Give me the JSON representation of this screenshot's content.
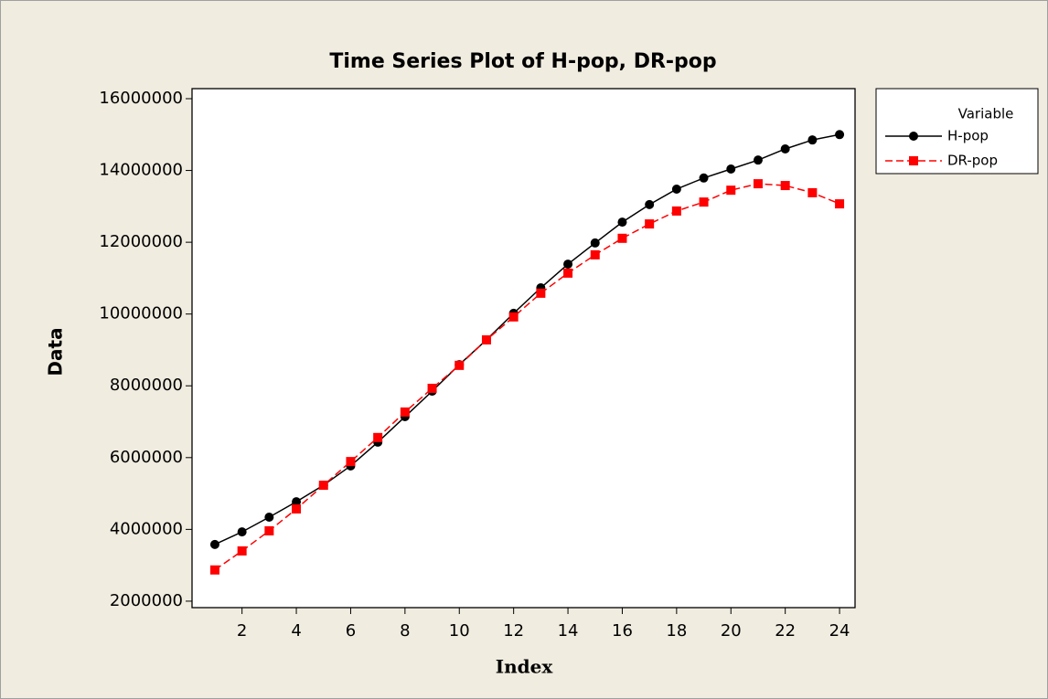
{
  "chart_data": {
    "type": "line",
    "title": "Time Series Plot of H-pop, DR-pop",
    "x_label": "Index",
    "y_label": "Data",
    "legend_title": "Variable",
    "legend_position": "outside-right",
    "x": [
      1,
      2,
      3,
      4,
      5,
      6,
      7,
      8,
      9,
      10,
      11,
      12,
      13,
      14,
      15,
      16,
      17,
      18,
      19,
      20,
      21,
      22,
      23,
      24
    ],
    "series": [
      {
        "name": "H-pop",
        "color": "#000000",
        "marker": "circle",
        "linestyle": "solid",
        "values": [
          3580000,
          3930000,
          4340000,
          4770000,
          5230000,
          5770000,
          6430000,
          7140000,
          7850000,
          8590000,
          9280000,
          10020000,
          10730000,
          11390000,
          11980000,
          12560000,
          13050000,
          13480000,
          13790000,
          14040000,
          14290000,
          14600000,
          14850000,
          15000000
        ]
      },
      {
        "name": "DR-pop",
        "color": "#ff0000",
        "marker": "square",
        "linestyle": "dashed",
        "values": [
          2870000,
          3400000,
          3960000,
          4570000,
          5230000,
          5890000,
          6560000,
          7270000,
          7930000,
          8570000,
          9280000,
          9920000,
          10580000,
          11140000,
          11650000,
          12110000,
          12510000,
          12870000,
          13120000,
          13450000,
          13630000,
          13580000,
          13380000,
          13070000
        ]
      }
    ],
    "xlim": [
      0.16,
      24.57
    ],
    "ylim": [
      1820000,
      16280000
    ],
    "xticks": [
      2,
      4,
      6,
      8,
      10,
      12,
      14,
      16,
      18,
      20,
      22,
      24
    ],
    "yticks": [
      2000000,
      4000000,
      6000000,
      8000000,
      10000000,
      12000000,
      14000000,
      16000000
    ],
    "grid": false
  }
}
